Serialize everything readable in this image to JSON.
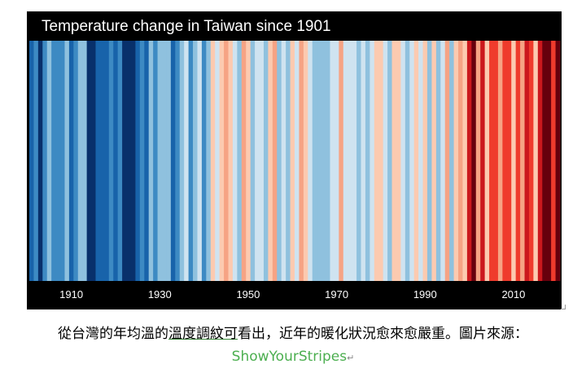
{
  "chart_data": {
    "type": "heatmap",
    "title": "Temperature change in Taiwan since 1901",
    "x_start_year": 1901,
    "x_end_year": 2020,
    "x_ticks": [
      "1910",
      "1930",
      "1950",
      "1970",
      "1990",
      "2010"
    ],
    "stripe_colors": [
      "#1863aa",
      "#3d8ac3",
      "#08306b",
      "#3d8ac3",
      "#8fc1de",
      "#3d8ac3",
      "#3d8ac3",
      "#3d8ac3",
      "#8fc1de",
      "#1863aa",
      "#3d8ac3",
      "#8fc1de",
      "#8fc1de",
      "#08306b",
      "#08306b",
      "#1863aa",
      "#1863aa",
      "#1863aa",
      "#3d8ac3",
      "#1863aa",
      "#3d8ac3",
      "#08306b",
      "#08306b",
      "#08306b",
      "#1863aa",
      "#3d8ac3",
      "#1863aa",
      "#8fc1de",
      "#3d8ac3",
      "#8fc1de",
      "#8fc1de",
      "#8fc1de",
      "#1863aa",
      "#3d8ac3",
      "#8fc1de",
      "#cfe3f0",
      "#3d8ac3",
      "#8fc1de",
      "#cfe3f0",
      "#3d8ac3",
      "#8fc1de",
      "#fccab0",
      "#cfe3f0",
      "#fccab0",
      "#f6a384",
      "#fccab0",
      "#cfe3f0",
      "#8fc1de",
      "#f6a384",
      "#fccab0",
      "#8fc1de",
      "#cfe3f0",
      "#cfe3f0",
      "#8fc1de",
      "#fccab0",
      "#f6a384",
      "#8fc1de",
      "#cfe3f0",
      "#8fc1de",
      "#fccab0",
      "#cfe3f0",
      "#f6a384",
      "#fccab0",
      "#cfe3f0",
      "#8fc1de",
      "#8fc1de",
      "#8fc1de",
      "#8fc1de",
      "#cfe3f0",
      "#cfe3f0",
      "#f6a384",
      "#cfe3f0",
      "#cfe3f0",
      "#cfe3f0",
      "#8fc1de",
      "#cfe3f0",
      "#8fc1de",
      "#cfe3f0",
      "#fccab0",
      "#fccab0",
      "#cfe3f0",
      "#8fc1de",
      "#fccab0",
      "#fccab0",
      "#cfe3f0",
      "#8fc1de",
      "#cfe3f0",
      "#fccab0",
      "#cfe3f0",
      "#fccab0",
      "#8fc1de",
      "#fccab0",
      "#8fc1de",
      "#cfe3f0",
      "#f6a384",
      "#8fc1de",
      "#fccab0",
      "#f6a384",
      "#fccab0",
      "#cb181d",
      "#67000d",
      "#f6a384",
      "#cb181d",
      "#fccab0",
      "#ef3b2c",
      "#ef3b2c",
      "#f6a384",
      "#ef3b2c",
      "#ef3b2c",
      "#fccab0",
      "#ef3b2c",
      "#f6a384",
      "#cb181d",
      "#ef3b2c",
      "#fccab0",
      "#cb181d",
      "#67000d",
      "#67000d",
      "#ef3b2c",
      "#67000d"
    ]
  },
  "caption": {
    "before_underline": "從台灣的年均溫的",
    "underlined": "溫度調紋可",
    "after_underline": "看出，近年的暖化狀況愈來愈嚴重。圖片來源：",
    "source_name": "ShowYourStripes",
    "return_mark": "↵"
  }
}
